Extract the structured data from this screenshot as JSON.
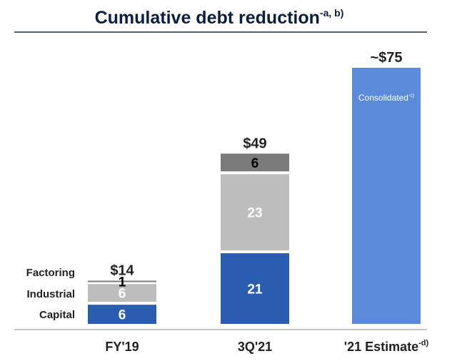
{
  "title": {
    "main": "Cumulative debt reduction",
    "superscript": "-a, b)"
  },
  "colors": {
    "Capital": "#2a5db0",
    "Industrial": "#bdbdbd",
    "Factoring": "#7b7b7b",
    "Consolidated": "#5b8ad9",
    "title": "#0c1f3d",
    "rule": "#1c2b4a",
    "axis": "#8c8c8c"
  },
  "chart_data": {
    "type": "bar",
    "stacked": true,
    "title": "Cumulative debt reduction",
    "xlabel": "",
    "ylabel": "",
    "ylim": [
      0,
      75
    ],
    "categories": [
      "FY'19",
      "3Q'21",
      "'21 Estimate"
    ],
    "category_superscripts": [
      "",
      "",
      "-d)"
    ],
    "totals": [
      "$14",
      "$49",
      "~$75"
    ],
    "series": [
      {
        "name": "Capital",
        "values": [
          6,
          21,
          null
        ],
        "labels": [
          "6",
          "21",
          ""
        ]
      },
      {
        "name": "Industrial",
        "values": [
          6,
          23,
          null
        ],
        "labels": [
          "6",
          "23",
          ""
        ]
      },
      {
        "name": "Factoring",
        "values": [
          1,
          6,
          null
        ],
        "labels": [
          "1",
          "6",
          ""
        ]
      },
      {
        "name": "Consolidated",
        "values": [
          null,
          null,
          75
        ],
        "labels": [
          "",
          "",
          "Consolidated"
        ],
        "label_superscript": "-c)"
      }
    ],
    "side_labels": [
      "Factoring",
      "Industrial",
      "Capital"
    ],
    "legend": "none",
    "grid": false
  }
}
